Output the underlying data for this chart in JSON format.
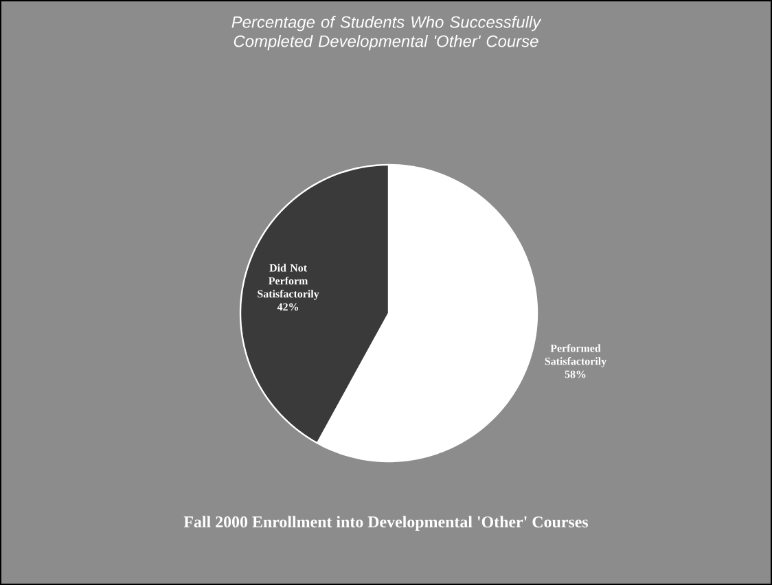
{
  "chart_data": {
    "type": "pie",
    "title": "Percentage of Students Who Successfully Completed Developmental 'Other' Course",
    "categories": [
      "Performed Satisfactorily",
      "Did Not Perform Satisfactorily"
    ],
    "values": [
      58,
      42
    ],
    "colors": [
      "#ffffff",
      "#3a3a3a"
    ],
    "value_labels": [
      "58%",
      "42%"
    ],
    "annotations": [
      "Fall 2000 Enrollment into Developmental 'Other' Courses"
    ]
  }
}
